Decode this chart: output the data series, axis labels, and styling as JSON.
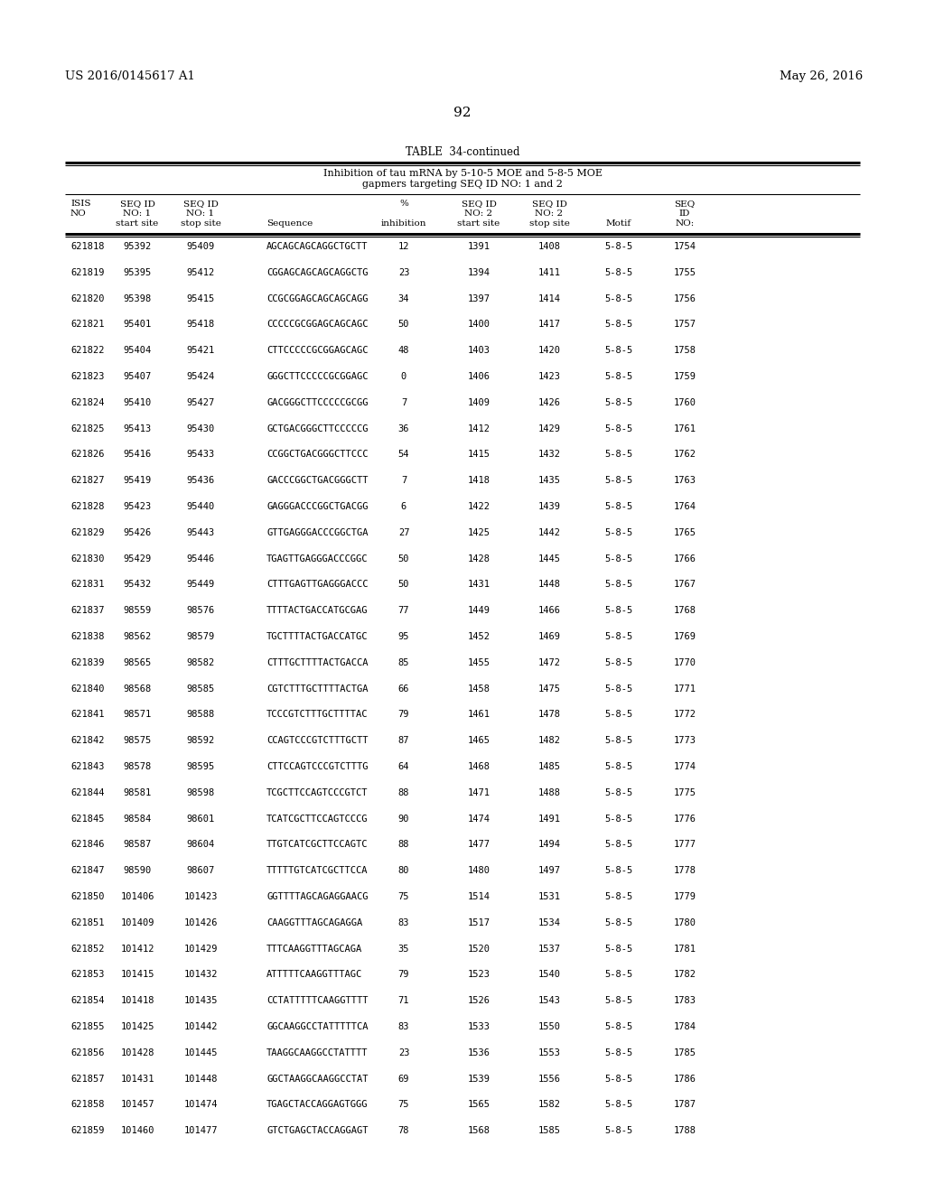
{
  "patent_left": "US 2016/0145617 A1",
  "patent_right": "May 26, 2016",
  "page_number": "92",
  "table_title": "TABLE  34-continued",
  "table_subtitle1": "Inhibition of tau mRNA by 5-10-5 MOE and 5-8-5 MOE",
  "table_subtitle2": "gapmers targeting SEQ ID NO: 1 and 2",
  "rows": [
    [
      "621818",
      "95392",
      "95409",
      "AGCAGCAGCAGGCTGCTT",
      "12",
      "1391",
      "1408",
      "5-8-5",
      "1754"
    ],
    [
      "621819",
      "95395",
      "95412",
      "CGGAGCAGCAGCAGGCTG",
      "23",
      "1394",
      "1411",
      "5-8-5",
      "1755"
    ],
    [
      "621820",
      "95398",
      "95415",
      "CCGCGGAGCAGCAGCAGG",
      "34",
      "1397",
      "1414",
      "5-8-5",
      "1756"
    ],
    [
      "621821",
      "95401",
      "95418",
      "CCCCCGCGGAGCAGCAGC",
      "50",
      "1400",
      "1417",
      "5-8-5",
      "1757"
    ],
    [
      "621822",
      "95404",
      "95421",
      "CTTCCCCCGCGGAGCAGC",
      "48",
      "1403",
      "1420",
      "5-8-5",
      "1758"
    ],
    [
      "621823",
      "95407",
      "95424",
      "GGGCTTCCCCCGCGGAGC",
      "0",
      "1406",
      "1423",
      "5-8-5",
      "1759"
    ],
    [
      "621824",
      "95410",
      "95427",
      "GACGGGCTTCCCCCGCGG",
      "7",
      "1409",
      "1426",
      "5-8-5",
      "1760"
    ],
    [
      "621825",
      "95413",
      "95430",
      "GCTGACGGGCTTCCCCCG",
      "36",
      "1412",
      "1429",
      "5-8-5",
      "1761"
    ],
    [
      "621826",
      "95416",
      "95433",
      "CCGGCTGACGGGCTTCCC",
      "54",
      "1415",
      "1432",
      "5-8-5",
      "1762"
    ],
    [
      "621827",
      "95419",
      "95436",
      "GACCCGGCTGACGGGCTT",
      "7",
      "1418",
      "1435",
      "5-8-5",
      "1763"
    ],
    [
      "621828",
      "95423",
      "95440",
      "GAGGGACCCGGCTGACGG",
      "6",
      "1422",
      "1439",
      "5-8-5",
      "1764"
    ],
    [
      "621829",
      "95426",
      "95443",
      "GTTGAGGGACCCGGCTGA",
      "27",
      "1425",
      "1442",
      "5-8-5",
      "1765"
    ],
    [
      "621830",
      "95429",
      "95446",
      "TGAGTTGAGGGACCCGGC",
      "50",
      "1428",
      "1445",
      "5-8-5",
      "1766"
    ],
    [
      "621831",
      "95432",
      "95449",
      "CTTTGAGTTGAGGGACCC",
      "50",
      "1431",
      "1448",
      "5-8-5",
      "1767"
    ],
    [
      "621837",
      "98559",
      "98576",
      "TTTTACTGACCATGCGAG",
      "77",
      "1449",
      "1466",
      "5-8-5",
      "1768"
    ],
    [
      "621838",
      "98562",
      "98579",
      "TGCTTTTACTGACCATGC",
      "95",
      "1452",
      "1469",
      "5-8-5",
      "1769"
    ],
    [
      "621839",
      "98565",
      "98582",
      "CTTTGCTTTTACTGACCA",
      "85",
      "1455",
      "1472",
      "5-8-5",
      "1770"
    ],
    [
      "621840",
      "98568",
      "98585",
      "CGTCTTTGCTTTTACTGA",
      "66",
      "1458",
      "1475",
      "5-8-5",
      "1771"
    ],
    [
      "621841",
      "98571",
      "98588",
      "TCCCGTCTTTGCTTTTAC",
      "79",
      "1461",
      "1478",
      "5-8-5",
      "1772"
    ],
    [
      "621842",
      "98575",
      "98592",
      "CCAGTCCCGTCTTTGCTT",
      "87",
      "1465",
      "1482",
      "5-8-5",
      "1773"
    ],
    [
      "621843",
      "98578",
      "98595",
      "CTTCCAGTCCCGTCTTTG",
      "64",
      "1468",
      "1485",
      "5-8-5",
      "1774"
    ],
    [
      "621844",
      "98581",
      "98598",
      "TCGCTTCCAGTCCCGTCT",
      "88",
      "1471",
      "1488",
      "5-8-5",
      "1775"
    ],
    [
      "621845",
      "98584",
      "98601",
      "TCATCGCTTCCAGTCCCG",
      "90",
      "1474",
      "1491",
      "5-8-5",
      "1776"
    ],
    [
      "621846",
      "98587",
      "98604",
      "TTGTCATCGCTTCCAGTC",
      "88",
      "1477",
      "1494",
      "5-8-5",
      "1777"
    ],
    [
      "621847",
      "98590",
      "98607",
      "TTTTTGTCATCGCTTCCA",
      "80",
      "1480",
      "1497",
      "5-8-5",
      "1778"
    ],
    [
      "621850",
      "101406",
      "101423",
      "GGTTTTAGCAGAGGAACG",
      "75",
      "1514",
      "1531",
      "5-8-5",
      "1779"
    ],
    [
      "621851",
      "101409",
      "101426",
      "CAAGGTTTAGCAGAGGA",
      "83",
      "1517",
      "1534",
      "5-8-5",
      "1780"
    ],
    [
      "621852",
      "101412",
      "101429",
      "TTTCAAGGTTTAGCAGA",
      "35",
      "1520",
      "1537",
      "5-8-5",
      "1781"
    ],
    [
      "621853",
      "101415",
      "101432",
      "ATTTTTCAAGGTTTAGC",
      "79",
      "1523",
      "1540",
      "5-8-5",
      "1782"
    ],
    [
      "621854",
      "101418",
      "101435",
      "CCTATTTTTCAAGGTTTT",
      "71",
      "1526",
      "1543",
      "5-8-5",
      "1783"
    ],
    [
      "621855",
      "101425",
      "101442",
      "GGCAAGGCCTATTTTTCA",
      "83",
      "1533",
      "1550",
      "5-8-5",
      "1784"
    ],
    [
      "621856",
      "101428",
      "101445",
      "TAAGGCAAGGCCTATTTT",
      "23",
      "1536",
      "1553",
      "5-8-5",
      "1785"
    ],
    [
      "621857",
      "101431",
      "101448",
      "GGCTAAGGCAAGGCCTAT",
      "69",
      "1539",
      "1556",
      "5-8-5",
      "1786"
    ],
    [
      "621858",
      "101457",
      "101474",
      "TGAGCTACCAGGAGTGGG",
      "75",
      "1565",
      "1582",
      "5-8-5",
      "1787"
    ],
    [
      "621859",
      "101460",
      "101477",
      "GTCTGAGCTACCAGGAGT",
      "78",
      "1568",
      "1585",
      "5-8-5",
      "1788"
    ]
  ],
  "bg_color": "#ffffff",
  "text_color": "#000000"
}
